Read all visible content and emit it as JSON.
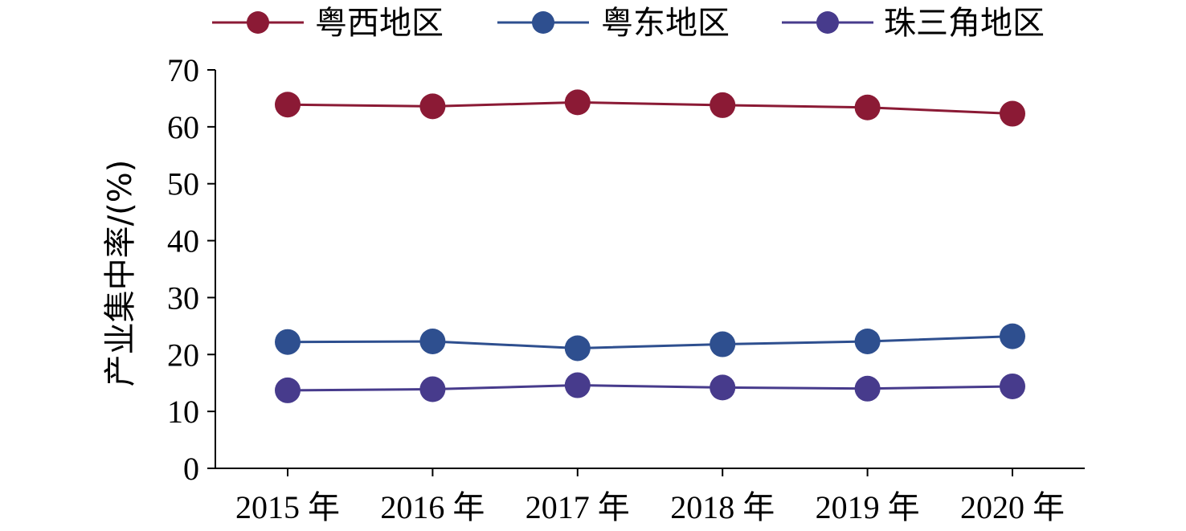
{
  "chart_data": {
    "type": "line",
    "categories": [
      "2015 年",
      "2016 年",
      "2017 年",
      "2018 年",
      "2019 年",
      "2020 年"
    ],
    "ylabel": "产业集中率/(%)",
    "ylim": [
      0,
      70
    ],
    "yticks": [
      0,
      10,
      20,
      30,
      40,
      50,
      60,
      70
    ],
    "legend_position": "top",
    "grid": false,
    "series": [
      {
        "name": "粤西地区",
        "color": "#8B1A35",
        "values": [
          63.9,
          63.6,
          64.3,
          63.8,
          63.4,
          62.3
        ]
      },
      {
        "name": "粤东地区",
        "color": "#2E4F8F",
        "values": [
          22.2,
          22.3,
          21.1,
          21.8,
          22.3,
          23.2
        ]
      },
      {
        "name": "珠三角地区",
        "color": "#473B8C",
        "values": [
          13.7,
          13.9,
          14.6,
          14.2,
          14.0,
          14.4
        ]
      }
    ]
  }
}
